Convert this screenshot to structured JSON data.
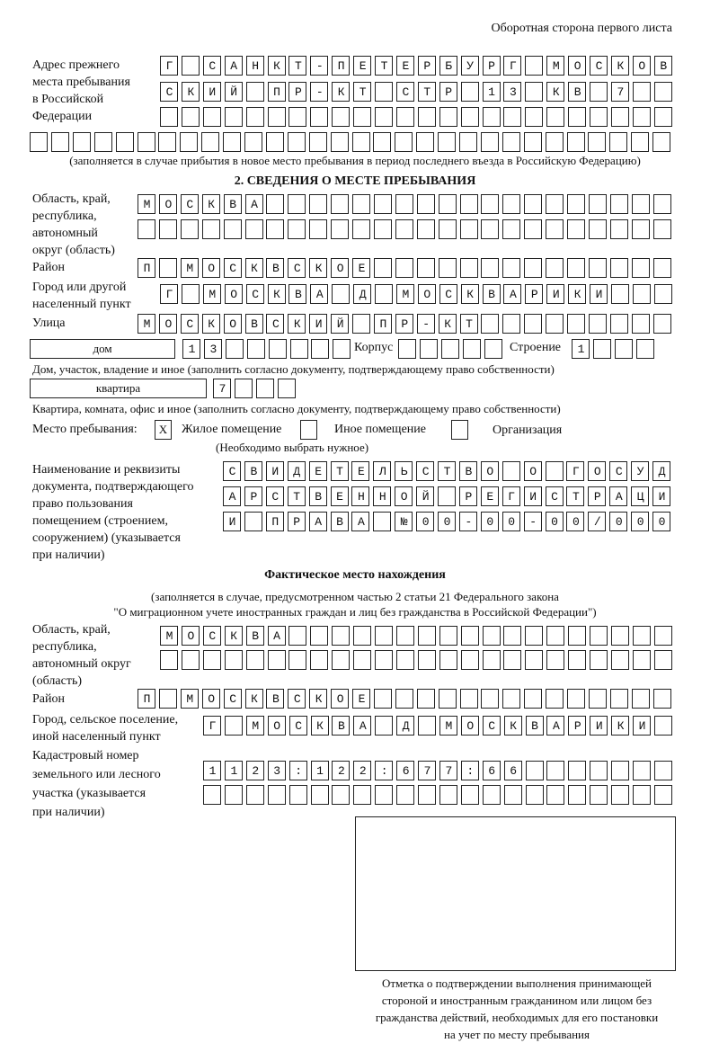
{
  "header": "Оборотная сторона первого листа",
  "previous_address": {
    "label": [
      "Адрес прежнего",
      "места пребывания",
      "в Российской",
      "Федерации"
    ],
    "rows": [
      "Г САНКТ-ПЕТЕРБУРГ МОСКОВ",
      "СКИЙ ПР-КТ СТР 13 КВ 7  ",
      "                        ",
      "                              "
    ],
    "note": "(заполняется в случае прибытия в новое место пребывания в период последнего въезда в Российскую Федерацию)"
  },
  "section2": {
    "title": "2. СВЕДЕНИЯ О МЕСТЕ ПРЕБЫВАНИЯ",
    "region_label": [
      "Область, край,",
      "республика,",
      "автономный",
      "округ (область)"
    ],
    "region_rows": [
      "МОСКВА                   ",
      "                         "
    ],
    "district_label": "Район",
    "district_row": "П МОСКВСКОЕ              ",
    "city_label": [
      "Город или другой",
      "населенный пункт"
    ],
    "city_row": "Г МОСКВА Д МОСКВАРИКИ   ",
    "street_label": "Улица",
    "street_row": "МОСКОВСКИЙ ПР-КТ         ",
    "house_type": "дом",
    "house_cells": "13      ",
    "korpus_label": "Корпус",
    "korpus_cells": "     ",
    "building_label": "Строение",
    "building_cells": "1   ",
    "house_note": "Дом, участок, владение и иное (заполнить согласно документу, подтверждающему право собственности)",
    "apt_type": "квартира",
    "apt_cells": "7   ",
    "apt_note": "Квартира, комната, офис и иное (заполнить согласно документу, подтверждающему право собственности)",
    "stay_label": "Место пребывания:",
    "stay_options": [
      {
        "label": "Жилое помещение",
        "mark": "X",
        "checked": true
      },
      {
        "label": "Иное помещение",
        "mark": "",
        "checked": false
      },
      {
        "label": "Организация",
        "mark": "",
        "checked": false
      }
    ],
    "stay_note": "(Необходимо выбрать нужное)",
    "doc_label": [
      "Наименование и реквизиты",
      "документа, подтверждающего",
      "право пользования",
      "помещением (строением,",
      "сооружением) (указывается",
      "при наличии)"
    ],
    "doc_rows": [
      "СВИДЕТЕЛЬСТВО О ГОСУД",
      "АРСТВЕННОЙ РЕГИСТРАЦИ",
      "И ПРАВА №00-00-00/000"
    ]
  },
  "actual": {
    "title": "Фактическое место нахождения",
    "note": [
      "(заполняется в случае, предусмотренном частью 2 статьи 21 Федерального закона",
      "\"О миграционном учете иностранных граждан и лиц без гражданства в Российской Федерации\")"
    ],
    "region_label": [
      "Область, край,",
      "республика,",
      "автономный округ",
      "(область)"
    ],
    "region_rows": [
      "МОСКВА                  ",
      "                        "
    ],
    "district_label": "Район",
    "district_row": "П МОСКВСКОЕ              ",
    "city_label": [
      "Город, сельское поселение,",
      "иной населенный пункт"
    ],
    "city_row": "Г МОСКВА Д МОСКВАРИКИ ",
    "cadastre_label": [
      "Кадастровый номер",
      "земельного или лесного",
      "участка (указывается",
      "при наличии)"
    ],
    "cadastre_rows": [
      "1123:122:677:66       ",
      "                      "
    ]
  },
  "stamp": {
    "caption": [
      "Отметка о подтверждении выполнения принимающей",
      "стороной и иностранным гражданином или лицом без",
      "гражданства действий, необходимых для его постановки",
      "на учет по месту пребывания"
    ]
  }
}
